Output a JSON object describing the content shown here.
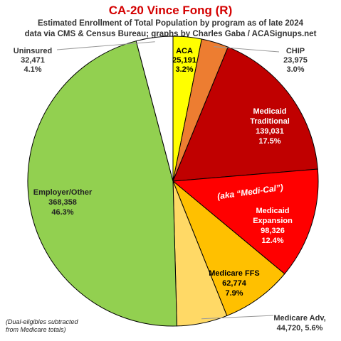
{
  "chart_data": {
    "type": "pie",
    "title": "CA-20 Vince Fong (R)",
    "subtitle_lines": [
      "Estimated Enrollment of Total Population by program as of late 2024",
      "data via CMS & Census Bureau; graphs by Charles Gaba / ACASignups.net"
    ],
    "annotation": "(aka “Medi-Cal”)",
    "footnote_lines": [
      "(Dual-eligibles subtracted",
      "from Medicare totals)"
    ],
    "slices": [
      {
        "label": "ACA",
        "value": 25191,
        "value_label": "25,191",
        "pct_label": "3.2%",
        "color": "#ffff00"
      },
      {
        "label": "CHIP",
        "value": 23975,
        "value_label": "23,975",
        "pct_label": "3.0%",
        "color": "#ed7d31"
      },
      {
        "label": "Medicaid Traditional",
        "label_lines": [
          "Medicaid",
          "Traditional"
        ],
        "value": 139031,
        "value_label": "139,031",
        "pct_label": "17.5%",
        "color": "#c00000"
      },
      {
        "label": "Medicaid Expansion",
        "label_lines": [
          "Medicaid",
          "Expansion"
        ],
        "value": 98326,
        "value_label": "98,326",
        "pct_label": "12.4%",
        "color": "#ff0000"
      },
      {
        "label": "Medicare FFS",
        "value": 62774,
        "value_label": "62,774",
        "pct_label": "7.9%",
        "color": "#ffc000"
      },
      {
        "label": "Medicare Adv,",
        "value": 44720,
        "value_label": "44,720, 5.6%",
        "pct_label": "5.6%",
        "color": "#ffd966"
      },
      {
        "label": "Employer/Other",
        "value": 368358,
        "value_label": "368,358",
        "pct_label": "46.3%",
        "color": "#92d050"
      },
      {
        "label": "Uninsured",
        "value": 32471,
        "value_label": "32,471",
        "pct_label": "4.1%",
        "color": "#ffffff"
      }
    ]
  }
}
